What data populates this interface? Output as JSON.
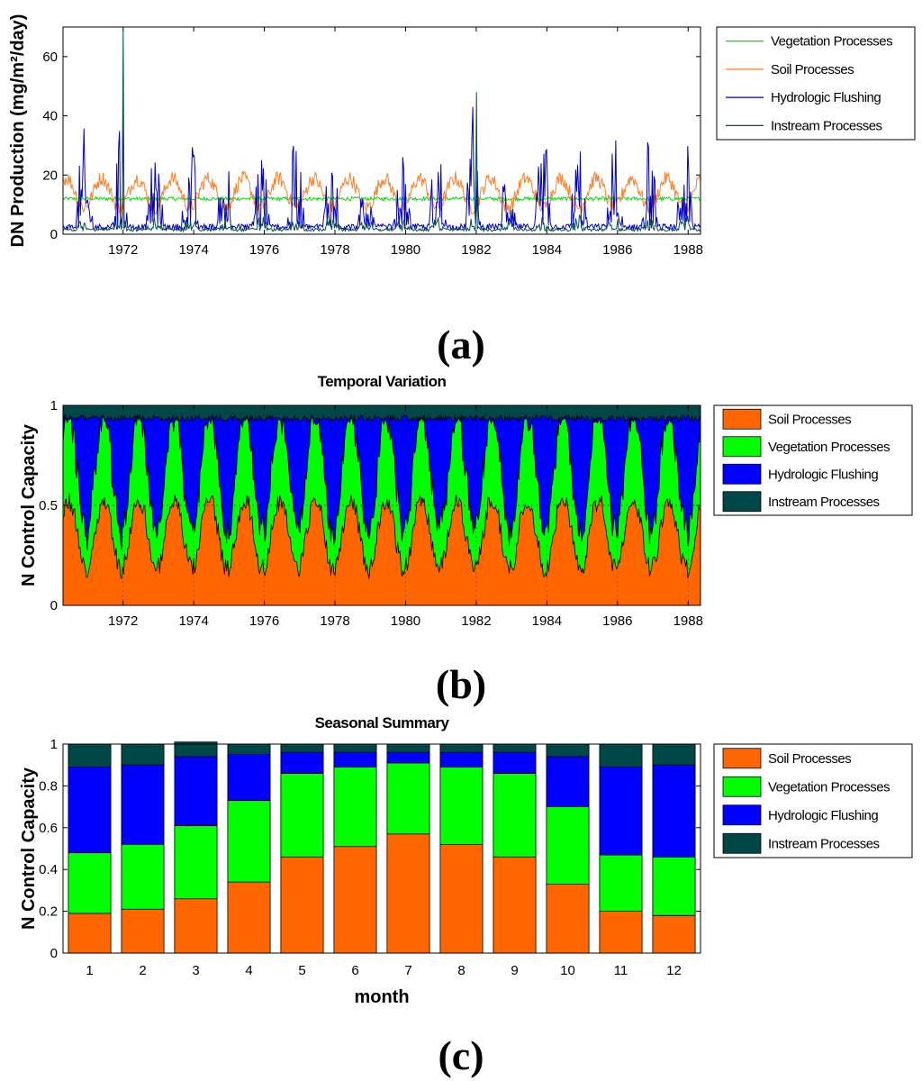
{
  "chart_data": [
    {
      "id": "a",
      "type": "line",
      "caption": "(a)",
      "title": "",
      "xlabel": "",
      "ylabel": "DN Production (mg/m²/day)",
      "xlim": [
        1970.3,
        1988.35
      ],
      "ylim": [
        0,
        70
      ],
      "xticks": [
        1972,
        1974,
        1976,
        1978,
        1980,
        1982,
        1984,
        1986,
        1988
      ],
      "xtick_labels": [
        "1972",
        "1974",
        "1976",
        "1978",
        "1980",
        "1982",
        "1984",
        "1986",
        "1988"
      ],
      "yticks": [
        0,
        20,
        40,
        60
      ],
      "ytick_labels": [
        "0",
        "20",
        "40",
        "60"
      ],
      "legend_position": "outside-right",
      "series": [
        {
          "name": "Vegetation Processes",
          "color": "#00e000",
          "mean": 12,
          "amplitude": 1,
          "style": "flat-noisy"
        },
        {
          "name": "Soil Processes",
          "color": "#ff7f27",
          "mean": 14,
          "amplitude": 7,
          "style": "seasonal"
        },
        {
          "name": "Hydrologic Flushing",
          "color": "#0000c8",
          "mean": 5,
          "amplitude": 30,
          "style": "flashy"
        },
        {
          "name": "Instream Processes",
          "color": "#005050",
          "mean": 2,
          "amplitude": 5,
          "style": "flashy-low"
        }
      ],
      "annotations": [
        {
          "x": 1972.0,
          "series": "Instream Processes",
          "value": 70
        },
        {
          "x": 1972.0,
          "series": "Hydrologic Flushing",
          "value": 44
        },
        {
          "x": 1982.0,
          "series": "Instream Processes",
          "value": 48
        },
        {
          "x": 1981.9,
          "series": "Hydrologic Flushing",
          "value": 43
        }
      ]
    },
    {
      "id": "b",
      "type": "area",
      "stacked": true,
      "caption": "(b)",
      "title": "Temporal Variation",
      "xlabel": "",
      "ylabel": "N Control Capacity",
      "xlim": [
        1970.3,
        1988.35
      ],
      "ylim": [
        0,
        1
      ],
      "xticks": [
        1972,
        1974,
        1976,
        1978,
        1980,
        1982,
        1984,
        1986,
        1988
      ],
      "xtick_labels": [
        "1972",
        "1974",
        "1976",
        "1978",
        "1980",
        "1982",
        "1984",
        "1986",
        "1988"
      ],
      "yticks": [
        0,
        0.5,
        1
      ],
      "ytick_labels": [
        "0",
        "0.5",
        "1"
      ],
      "gridline_y": 0.5,
      "legend_position": "outside-right",
      "series": [
        {
          "name": "Soil Processes",
          "color": "#ff6600",
          "mean": 0.36,
          "amplitude": 0.2
        },
        {
          "name": "Vegetation Processes",
          "color": "#00ff00",
          "mean": 0.31,
          "amplitude": 0.2
        },
        {
          "name": "Hydrologic Flushing",
          "color": "#0000ff",
          "mean": 0.25,
          "amplitude": 0.2
        },
        {
          "name": "Instream Processes",
          "color": "#004848",
          "mean": 0.05,
          "amplitude": 0.03
        }
      ]
    },
    {
      "id": "c",
      "type": "bar",
      "stacked": true,
      "caption": "(c)",
      "title": "Seasonal Summary",
      "xlabel": "month",
      "ylabel": "N Control Capacity",
      "categories": [
        "1",
        "2",
        "3",
        "4",
        "5",
        "6",
        "7",
        "8",
        "9",
        "10",
        "11",
        "12"
      ],
      "ylim": [
        0,
        1
      ],
      "yticks": [
        0,
        0.2,
        0.4,
        0.6,
        0.8,
        1
      ],
      "ytick_labels": [
        "0",
        "0.2",
        "0.4",
        "0.6",
        "0.8",
        "1"
      ],
      "legend_position": "outside-right",
      "series": [
        {
          "name": "Soil Processes",
          "color": "#ff6600",
          "values": [
            0.19,
            0.21,
            0.26,
            0.34,
            0.46,
            0.51,
            0.57,
            0.52,
            0.46,
            0.33,
            0.2,
            0.18
          ]
        },
        {
          "name": "Vegetation Processes",
          "color": "#00ff00",
          "values": [
            0.29,
            0.31,
            0.35,
            0.39,
            0.4,
            0.38,
            0.34,
            0.37,
            0.4,
            0.37,
            0.27,
            0.28
          ]
        },
        {
          "name": "Hydrologic Flushing",
          "color": "#0000ff",
          "values": [
            0.41,
            0.38,
            0.33,
            0.22,
            0.1,
            0.07,
            0.05,
            0.07,
            0.1,
            0.24,
            0.42,
            0.44
          ]
        },
        {
          "name": "Instream Processes",
          "color": "#004848",
          "values": [
            0.11,
            0.1,
            0.07,
            0.05,
            0.04,
            0.04,
            0.04,
            0.04,
            0.04,
            0.06,
            0.11,
            0.1
          ]
        }
      ]
    }
  ]
}
